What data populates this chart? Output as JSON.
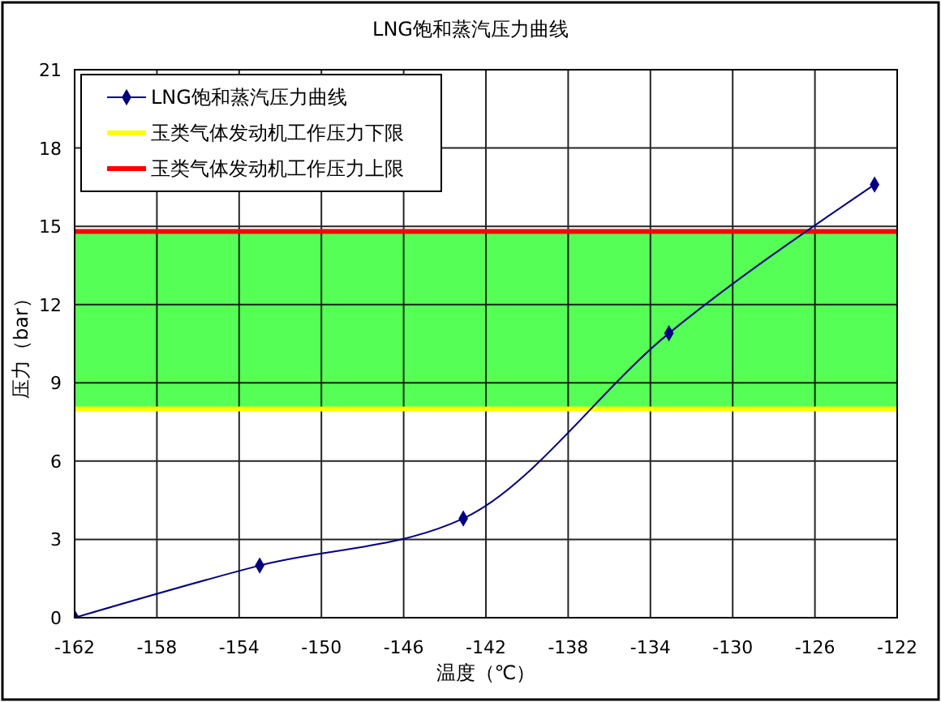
{
  "chart_data": {
    "type": "line",
    "title": "LNG饱和蒸汽压力曲线",
    "xlabel": "温度（℃）",
    "ylabel": "压力（bar）",
    "x": [
      -162,
      -153,
      -143.1,
      -133.1,
      -123.1
    ],
    "series": [
      {
        "name": "LNG饱和蒸汽压力曲线",
        "color": "#000080",
        "values": [
          0,
          2,
          3.8,
          10.9,
          16.6
        ]
      }
    ],
    "xlim": [
      -162,
      -122
    ],
    "xticks": [
      -162,
      -158,
      -154,
      -150,
      -146,
      -142,
      -138,
      -134,
      -130,
      -126,
      -122
    ],
    "ylim": [
      0,
      21
    ],
    "yticks": [
      0,
      3,
      6,
      9,
      12,
      15,
      18,
      21
    ],
    "bands": [
      {
        "axis": "y",
        "from": 8,
        "to": 14.8,
        "color": "#55ff55"
      }
    ],
    "ref_lines": [
      {
        "axis": "y",
        "value": 8,
        "label": "玉类气体发动机工作压力下限",
        "color": "#ffff00"
      },
      {
        "axis": "y",
        "value": 14.8,
        "label": "玉类气体发动机工作压力上限",
        "color": "#ff0000"
      }
    ],
    "grid": true,
    "legend": "top left",
    "marker": "diamond",
    "line_style": "solid"
  }
}
